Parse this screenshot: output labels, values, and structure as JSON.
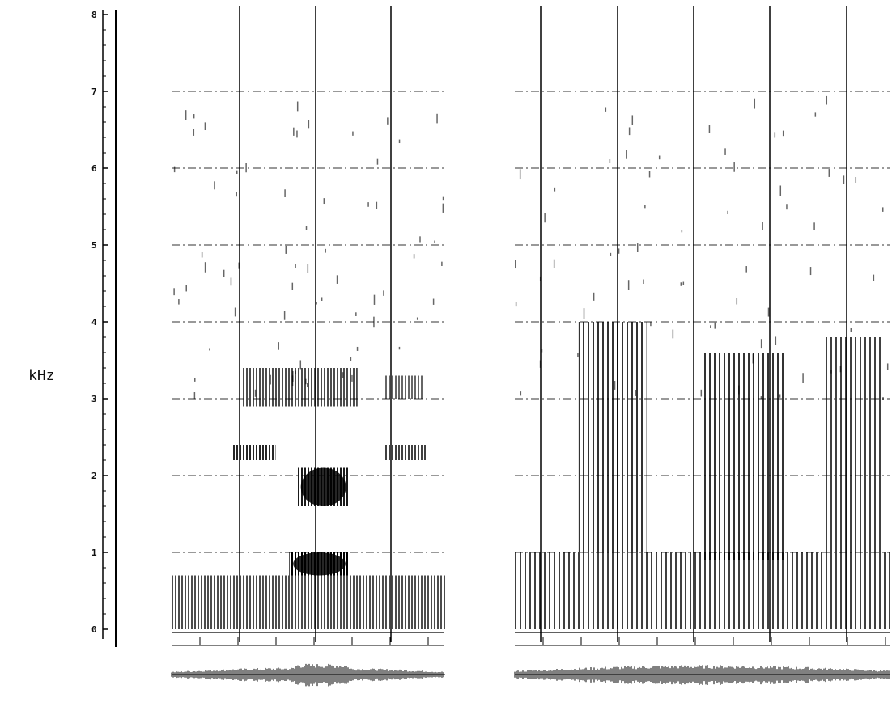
{
  "chart_data": {
    "type": "heatmap",
    "title": "",
    "ylabel": "kHz",
    "xlabel": "",
    "ylim": [
      0,
      8
    ],
    "yticks": [
      {
        "value": 0,
        "label": "0"
      },
      {
        "value": 1,
        "label": "1"
      },
      {
        "value": 2,
        "label": "2"
      },
      {
        "value": 3,
        "label": "3"
      },
      {
        "value": 4,
        "label": "4"
      },
      {
        "value": 5,
        "label": "5"
      },
      {
        "value": 6,
        "label": "6"
      },
      {
        "value": 7,
        "label": "7"
      },
      {
        "value": 8,
        "label": "8"
      }
    ],
    "grid": true,
    "panels": [
      {
        "name": "",
        "segment_boundaries": 3,
        "energy_bands": [
          {
            "t": [
              0.0,
              1.0
            ],
            "f": [
              0.0,
              0.7
            ],
            "intensity": 0.7
          },
          {
            "t": [
              0.22,
              0.38
            ],
            "f": [
              2.2,
              2.4
            ],
            "intensity": 0.85
          },
          {
            "t": [
              0.26,
              0.68
            ],
            "f": [
              2.9,
              3.4
            ],
            "intensity": 0.7
          },
          {
            "t": [
              0.43,
              0.65
            ],
            "f": [
              0.7,
              1.0
            ],
            "intensity": 1.0
          },
          {
            "t": [
              0.46,
              0.65
            ],
            "f": [
              1.6,
              2.1
            ],
            "intensity": 0.9
          },
          {
            "t": [
              0.78,
              0.93
            ],
            "f": [
              2.2,
              2.4
            ],
            "intensity": 0.75
          },
          {
            "t": [
              0.78,
              0.92
            ],
            "f": [
              3.0,
              3.3
            ],
            "intensity": 0.6
          }
        ]
      },
      {
        "name": "",
        "segment_boundaries": 5,
        "energy_bands": [
          {
            "t": [
              0.0,
              1.0
            ],
            "f": [
              0.0,
              1.0
            ],
            "intensity": 0.75
          },
          {
            "t": [
              0.17,
              0.35
            ],
            "f": [
              1.0,
              4.0
            ],
            "intensity": 0.8
          },
          {
            "t": [
              0.5,
              0.72
            ],
            "f": [
              0.9,
              3.6
            ],
            "intensity": 0.8
          },
          {
            "t": [
              0.82,
              0.98
            ],
            "f": [
              1.0,
              3.8
            ],
            "intensity": 0.75
          }
        ]
      }
    ]
  }
}
